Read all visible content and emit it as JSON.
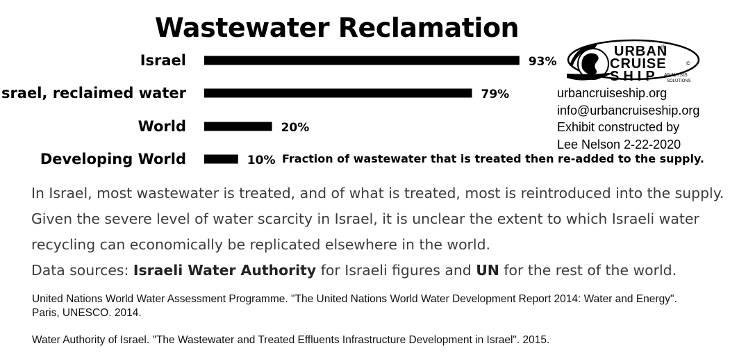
{
  "chart_data": {
    "type": "bar",
    "orientation": "horizontal",
    "title": "Wastewater Reclamation",
    "categories": [
      "Israel",
      "Israel, reclaimed water",
      "World",
      "Developing World"
    ],
    "values": [
      93,
      79,
      20,
      10
    ],
    "value_labels": [
      "93%",
      "79%",
      "20%",
      "10%"
    ],
    "unit": "%",
    "xlim": [
      0,
      100
    ],
    "bar_color": "#000000",
    "grid": false,
    "legend": "none",
    "annotation": "Fraction of wastewater that is treated then re-added to the supply."
  },
  "logo": {
    "line1": "URBAN",
    "line2": "CRUISE",
    "line3": "SHIP",
    "small1": "ANALYSIS",
    "small2": "SOLUTIONS",
    "reg_mark": "®",
    "copy_mark": "©",
    "icon": "globe-ship-icon"
  },
  "contact": {
    "website": "urbancruiseship.org",
    "email": "info@urbancruiseship.org",
    "credit_line1": "Exhibit constructed by",
    "credit_line2": "Lee Nelson 2-22-2020"
  },
  "body": {
    "paragraph": "In Israel, most wastewater is treated, and of what is treated, most is reintroduced into the supply. Given the severe level of water scarcity in Israel, it is unclear the extent to which Israeli water recycling can economically be replicated elsewhere in the world.",
    "sources_prefix": "Data sources: ",
    "source_israel": "Israeli Water Authority",
    "sources_mid": " for Israeli figures and ",
    "source_un": "UN",
    "sources_suffix": " for the rest of the world."
  },
  "references": [
    "United Nations World Water Assessment Programme. \"The United Nations World Water Development Report 2014: Water and Energy\". Paris, UNESCO. 2014.",
    "Water Authority of Israel. \"The Wastewater and Treated Effluents Infrastructure Development in Israel\". 2015."
  ]
}
